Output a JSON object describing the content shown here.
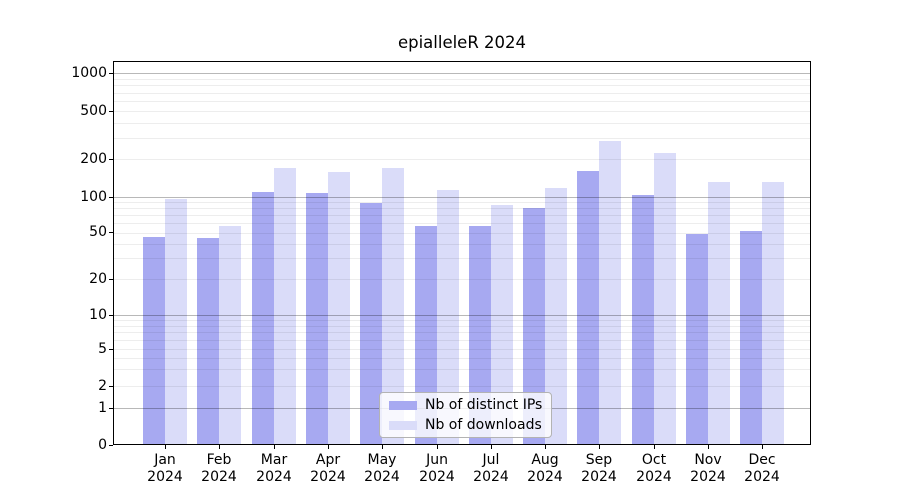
{
  "chart_data": {
    "type": "bar",
    "title": "epialleleR 2024",
    "categories": [
      "Jan",
      "Feb",
      "Mar",
      "Apr",
      "May",
      "Jun",
      "Jul",
      "Aug",
      "Sep",
      "Oct",
      "Nov",
      "Dec"
    ],
    "year": "2024",
    "series": [
      {
        "name": "Nb of distinct IPs",
        "color": "#a7a9f1",
        "values": [
          46,
          45,
          108,
          106,
          88,
          57,
          57,
          81,
          160,
          103,
          49,
          52
        ]
      },
      {
        "name": "Nb of downloads",
        "color": "#dadcf9",
        "values": [
          95,
          57,
          168,
          158,
          168,
          112,
          85,
          118,
          280,
          224,
          130,
          130
        ]
      }
    ],
    "y_ticks": [
      1000,
      500,
      200,
      100,
      50,
      20,
      10,
      5,
      2,
      1,
      0
    ],
    "y_scale": "symlog",
    "ylim": [
      0,
      1300
    ],
    "grid": true,
    "legend_position": "lower center",
    "colors": {
      "background": "#ffffff",
      "axis": "#000000",
      "grid_major": "#b6b6b6",
      "grid_minor": "#ededed"
    }
  }
}
